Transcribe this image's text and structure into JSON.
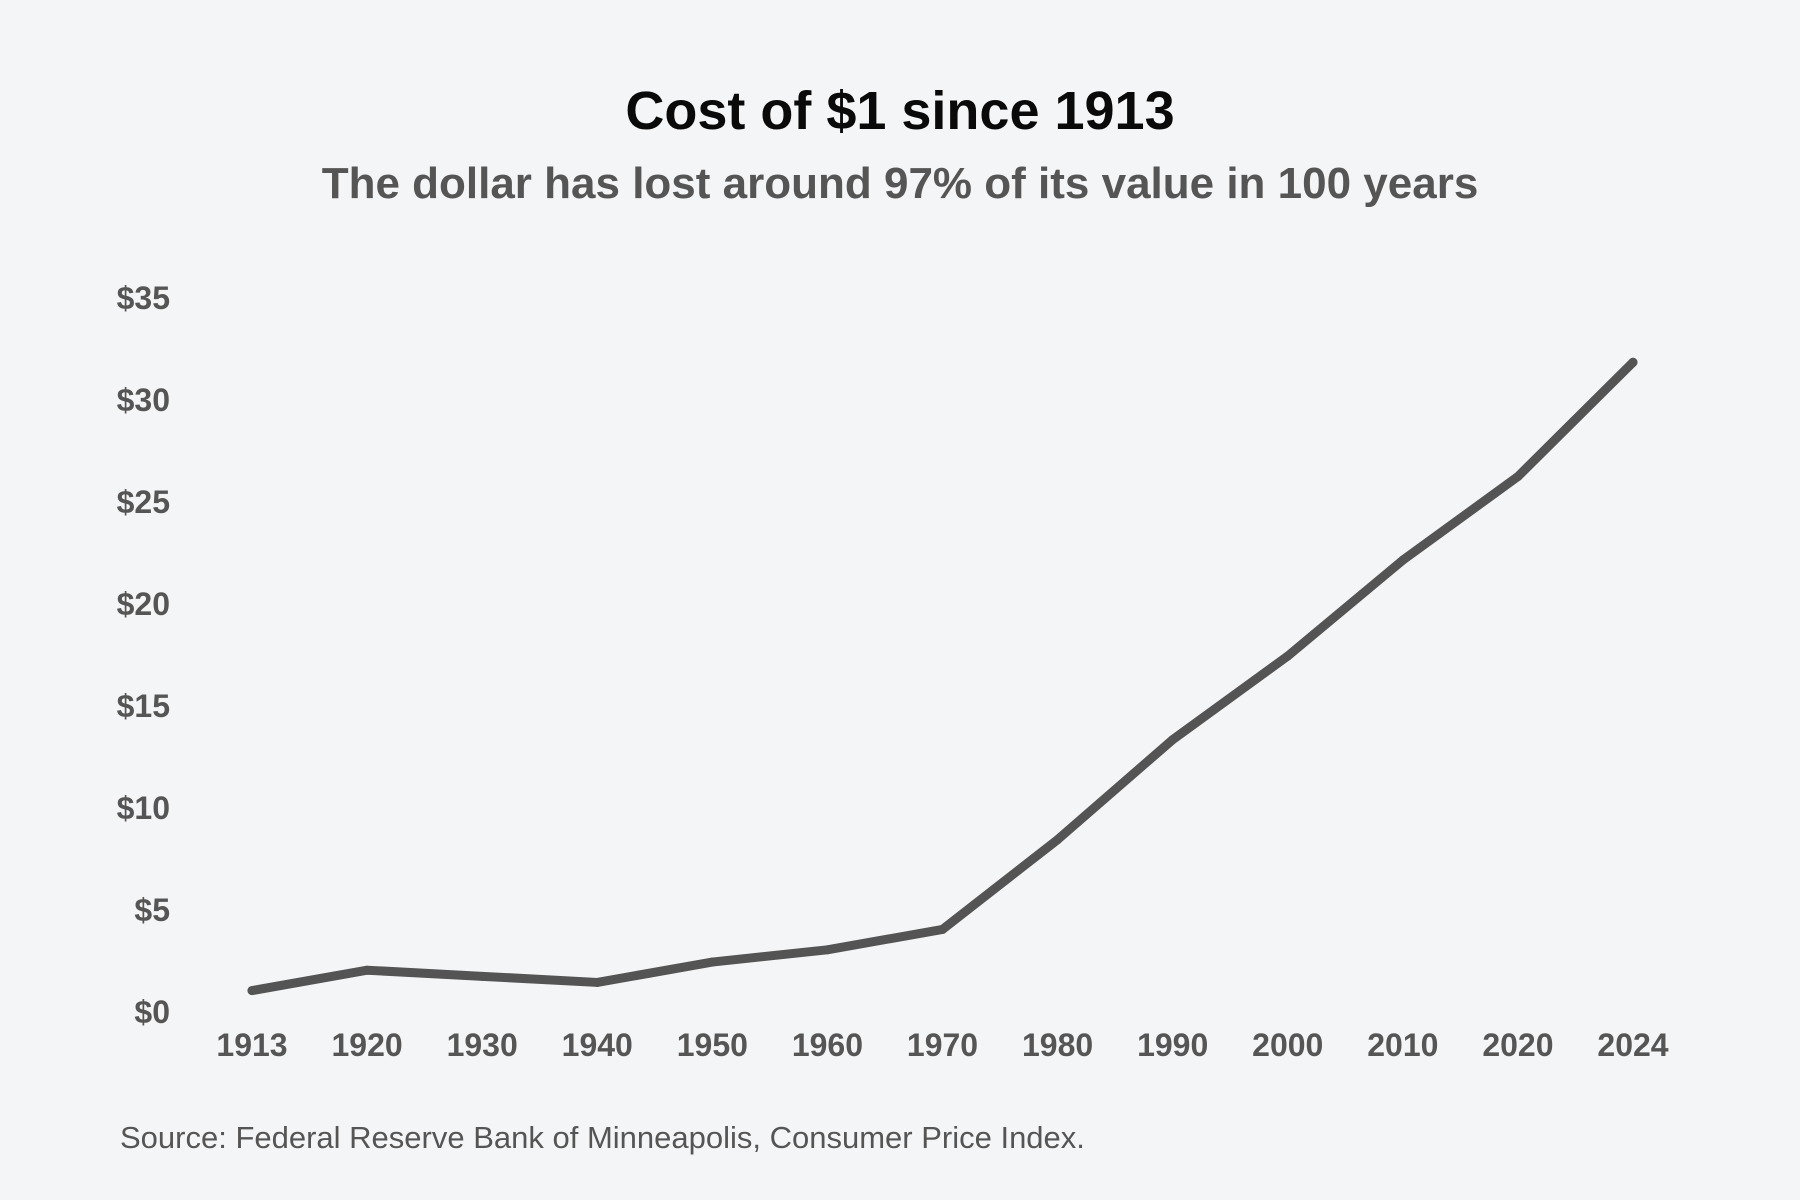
{
  "colors": {
    "background": "#f4f5f7",
    "line": "#545454",
    "text_muted": "#555555",
    "title": "#0a0a0a"
  },
  "chart_data": {
    "type": "line",
    "title": "Cost of $1 since 1913",
    "subtitle": "The dollar has lost around 97% of its value in 100 years",
    "xlabel": "",
    "ylabel": "",
    "categories": [
      "1913",
      "1920",
      "1930",
      "1940",
      "1950",
      "1960",
      "1970",
      "1980",
      "1990",
      "2000",
      "2010",
      "2020",
      "2024"
    ],
    "series": [
      {
        "values": [
          1.0,
          2.0,
          1.7,
          1.4,
          2.4,
          3.0,
          4.0,
          8.4,
          13.3,
          17.4,
          22.1,
          26.2,
          31.8
        ]
      }
    ],
    "ylim": [
      0,
      35
    ],
    "yticks": [
      0,
      5,
      10,
      15,
      20,
      25,
      30,
      35
    ],
    "ytick_labels": [
      "$0",
      "$5",
      "$10",
      "$15",
      "$20",
      "$25",
      "$30",
      "$35"
    ],
    "grid": false,
    "legend": "none"
  },
  "source": "Source: Federal Reserve Bank of Minneapolis, Consumer Price Index."
}
